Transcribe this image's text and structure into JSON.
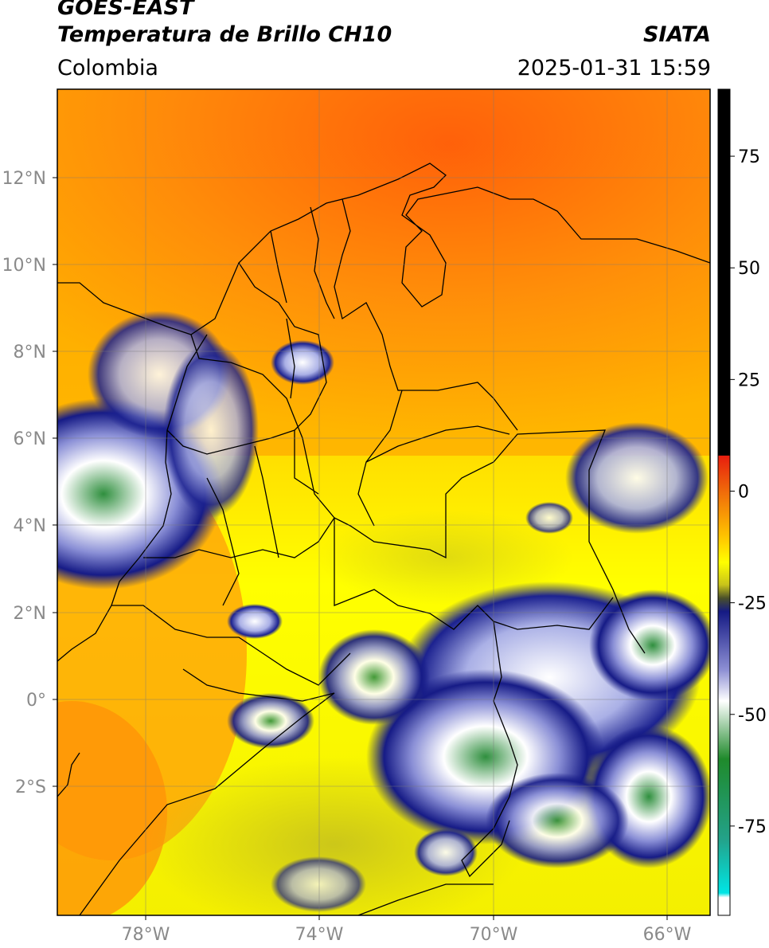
{
  "header": {
    "satellite": "GOES-EAST",
    "product": "Temperatura de Brillo CH10",
    "organization": "SIATA",
    "region": "Colombia",
    "datetime": "2025-01-31 15:59"
  },
  "map": {
    "lat_labels": [
      "12°N",
      "10°N",
      "8°N",
      "6°N",
      "4°N",
      "2°N",
      "0°",
      "2°S"
    ],
    "lon_labels": [
      "78°W",
      "74°W",
      "70°W",
      "66°W"
    ],
    "lon_range": [
      -80,
      -65
    ],
    "lat_range": [
      -5,
      14
    ]
  },
  "colorbar": {
    "ticks": [
      "75",
      "50",
      "25",
      "0",
      "-25",
      "-50",
      "-75"
    ],
    "tick_values": [
      75,
      50,
      25,
      0,
      -25,
      -50,
      -75
    ],
    "range": [
      -95,
      90
    ],
    "stops": [
      {
        "v": 90,
        "c": "#000000"
      },
      {
        "v": 8,
        "c": "#000000"
      },
      {
        "v": 7.9,
        "c": "#e81e0e"
      },
      {
        "v": 0,
        "c": "#f06a0a"
      },
      {
        "v": -10,
        "c": "#ffc200"
      },
      {
        "v": -16,
        "c": "#ffff00"
      },
      {
        "v": -21,
        "c": "#c8c31a"
      },
      {
        "v": -24,
        "c": "#494f2a"
      },
      {
        "v": -27,
        "c": "#151a84"
      },
      {
        "v": -40,
        "c": "#8d8fd4"
      },
      {
        "v": -47,
        "c": "#ffffff"
      },
      {
        "v": -60,
        "c": "#1f8a2b"
      },
      {
        "v": -78,
        "c": "#23a28a"
      },
      {
        "v": -90,
        "c": "#00e5e5"
      },
      {
        "v": -91,
        "c": "#ffffff"
      },
      {
        "v": -95,
        "c": "#ffffff"
      }
    ]
  }
}
